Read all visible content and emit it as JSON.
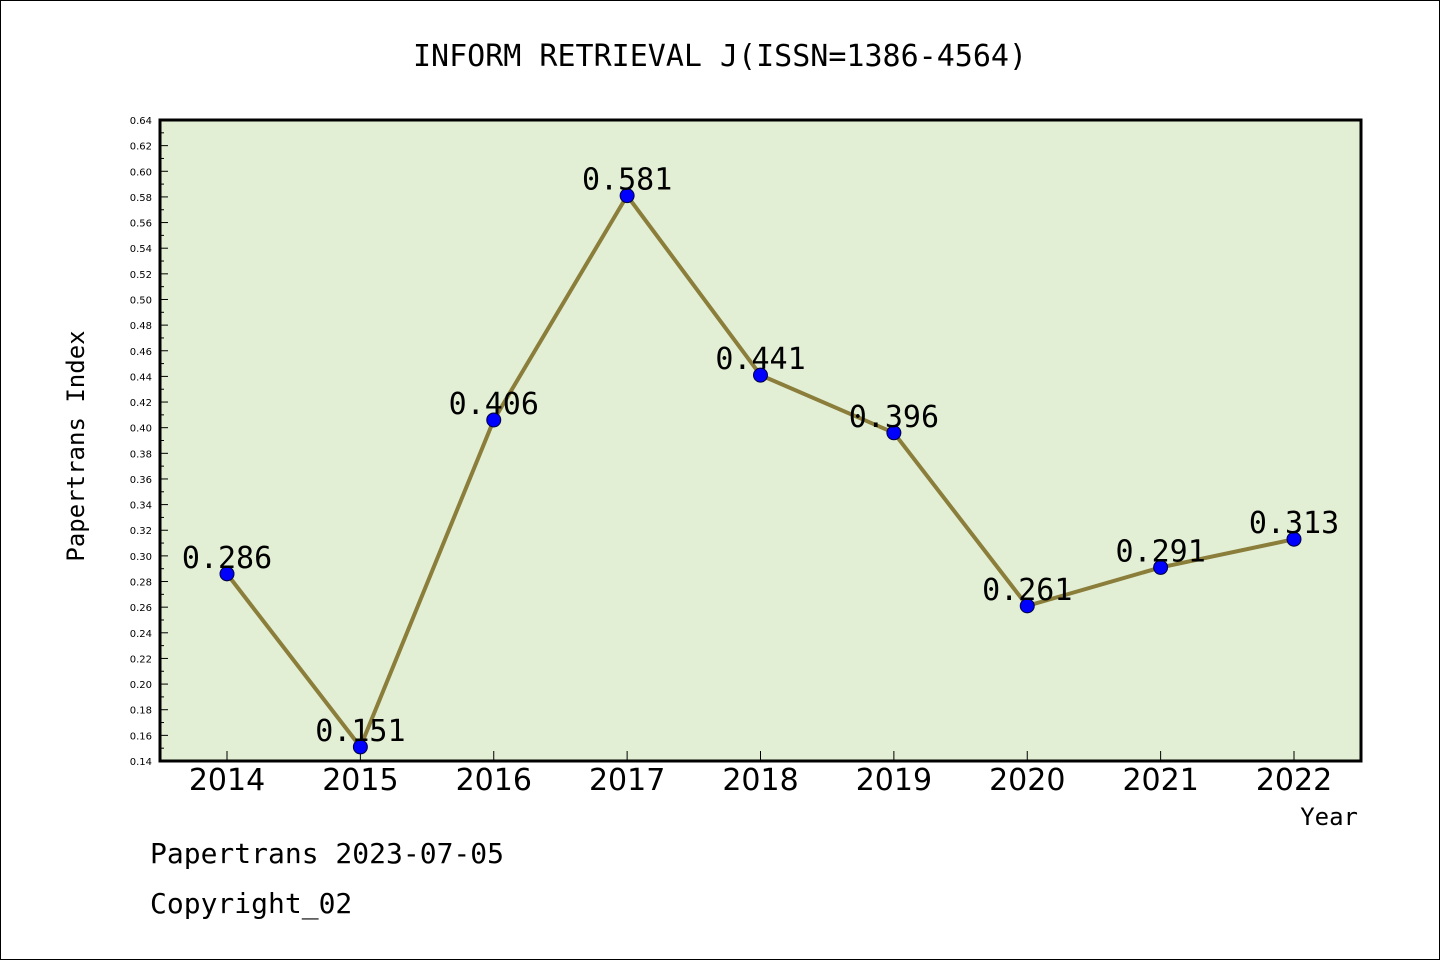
{
  "chart_data": {
    "type": "line",
    "title": "INFORM RETRIEVAL J(ISSN=1386-4564)",
    "xlabel": "Year",
    "ylabel": "Papertrans Index",
    "categories": [
      "2014",
      "2015",
      "2016",
      "2017",
      "2018",
      "2019",
      "2020",
      "2021",
      "2022"
    ],
    "series": [
      {
        "values": [
          0.286,
          0.151,
          0.406,
          0.581,
          0.441,
          0.396,
          0.261,
          0.291,
          0.313
        ],
        "labels": [
          "0.286",
          "0.151",
          "0.406",
          "0.581",
          "0.441",
          "0.396",
          "0.261",
          "0.291",
          "0.313"
        ]
      }
    ],
    "ylim": [
      0.14,
      0.64
    ],
    "ytick_step": 0.02,
    "grid": false,
    "legend": "none",
    "colors": {
      "plot_background": "#e2efd5",
      "line": "#8b7d3a",
      "marker": "#0000ff"
    }
  },
  "footer": {
    "date_line": "Papertrans 2023-07-05",
    "copyright_line": "Copyright_02"
  }
}
